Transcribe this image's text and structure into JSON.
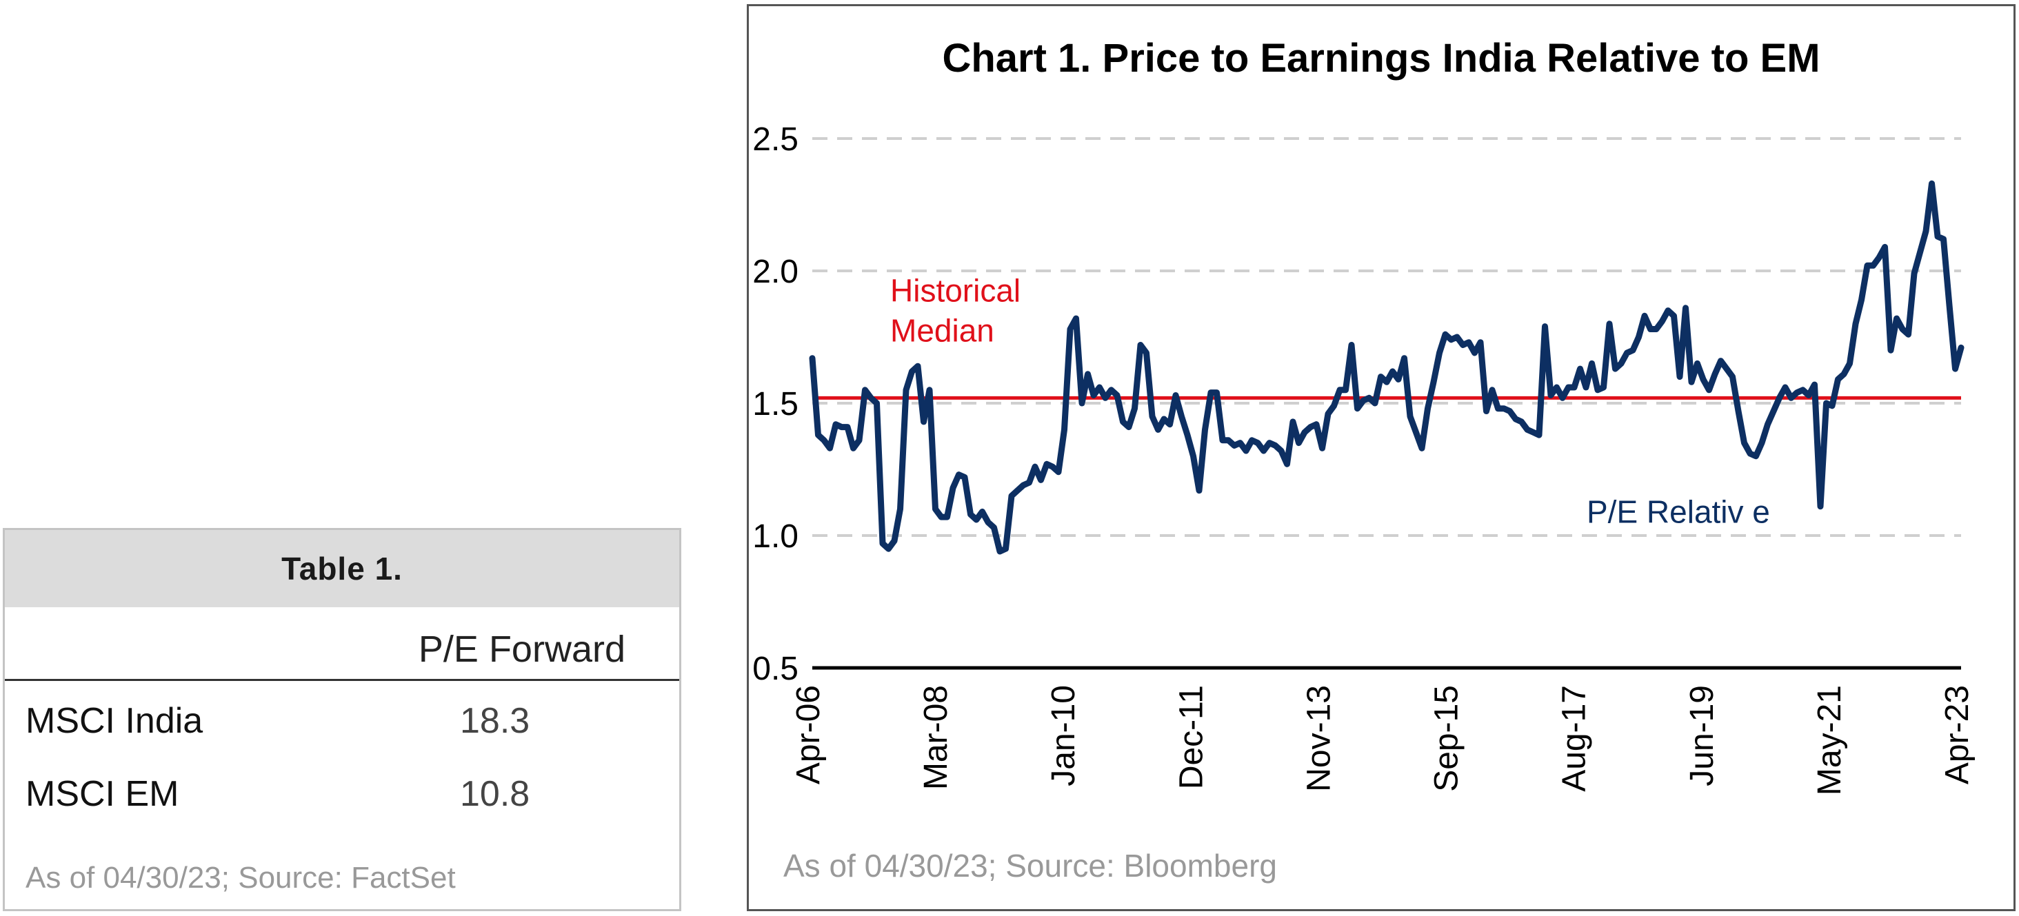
{
  "table": {
    "title": "Table 1.",
    "column_header": "P/E Forward",
    "rows": [
      {
        "label": "MSCI India",
        "value": "18.3"
      },
      {
        "label": "MSCI EM",
        "value": "10.8"
      }
    ],
    "note": "As of 04/30/23;  Source: FactSet"
  },
  "chart_data": {
    "type": "line",
    "title": "Chart 1. Price to Earnings India Relative to EM",
    "xlabel": "",
    "ylabel": "",
    "ylim": [
      0.5,
      2.5
    ],
    "yticks": [
      "0.5",
      "1.0",
      "1.5",
      "2.0",
      "2.5"
    ],
    "xtick_labels": [
      "Apr-06",
      "Mar-08",
      "Jan-10",
      "Dec-11",
      "Nov-13",
      "Sep-15",
      "Aug-17",
      "Jun-19",
      "May-21",
      "Apr-23"
    ],
    "grid": "horizontal-dashed",
    "series": [
      {
        "name": "P/E Relative",
        "color": "#0d2f62",
        "x_range": [
          "Apr-06",
          "Apr-23"
        ],
        "values": [
          1.67,
          1.38,
          1.36,
          1.33,
          1.42,
          1.41,
          1.41,
          1.33,
          1.36,
          1.55,
          1.52,
          1.5,
          0.97,
          0.95,
          0.98,
          1.1,
          1.55,
          1.62,
          1.64,
          1.43,
          1.55,
          1.1,
          1.07,
          1.07,
          1.18,
          1.23,
          1.22,
          1.08,
          1.06,
          1.09,
          1.05,
          1.03,
          0.94,
          0.95,
          1.15,
          1.17,
          1.19,
          1.2,
          1.26,
          1.21,
          1.27,
          1.26,
          1.24,
          1.4,
          1.78,
          1.82,
          1.5,
          1.61,
          1.53,
          1.56,
          1.52,
          1.55,
          1.53,
          1.43,
          1.41,
          1.48,
          1.72,
          1.69,
          1.45,
          1.4,
          1.44,
          1.42,
          1.53,
          1.45,
          1.38,
          1.3,
          1.17,
          1.4,
          1.54,
          1.54,
          1.36,
          1.36,
          1.34,
          1.35,
          1.32,
          1.36,
          1.35,
          1.32,
          1.35,
          1.34,
          1.32,
          1.27,
          1.43,
          1.35,
          1.39,
          1.41,
          1.42,
          1.33,
          1.46,
          1.49,
          1.55,
          1.55,
          1.72,
          1.48,
          1.51,
          1.52,
          1.5,
          1.6,
          1.58,
          1.62,
          1.59,
          1.67,
          1.45,
          1.39,
          1.33,
          1.48,
          1.58,
          1.69,
          1.76,
          1.74,
          1.75,
          1.72,
          1.73,
          1.69,
          1.73,
          1.47,
          1.55,
          1.48,
          1.48,
          1.47,
          1.44,
          1.43,
          1.4,
          1.39,
          1.38,
          1.79,
          1.53,
          1.56,
          1.52,
          1.56,
          1.56,
          1.63,
          1.56,
          1.65,
          1.55,
          1.56,
          1.8,
          1.63,
          1.65,
          1.69,
          1.7,
          1.75,
          1.83,
          1.78,
          1.78,
          1.81,
          1.85,
          1.83,
          1.6,
          1.86,
          1.58,
          1.65,
          1.59,
          1.55,
          1.61,
          1.66,
          1.63,
          1.6,
          1.47,
          1.35,
          1.31,
          1.3,
          1.35,
          1.42,
          1.47,
          1.52,
          1.56,
          1.52,
          1.54,
          1.55,
          1.53,
          1.57,
          1.11,
          1.5,
          1.49,
          1.59,
          1.61,
          1.65,
          1.8,
          1.89,
          2.02,
          2.02,
          2.05,
          2.09,
          1.7,
          1.82,
          1.78,
          1.76,
          1.99,
          2.07,
          2.15,
          2.33,
          2.13,
          2.12,
          1.87,
          1.63,
          1.71
        ]
      }
    ],
    "reference_lines": [
      {
        "name": "Historical Median",
        "label_lines": [
          "Historical",
          "Median"
        ],
        "value": 1.52,
        "color": "#e0101a"
      }
    ],
    "series_label": "P/E Relativ e",
    "note": "As of 04/30/23; Source:  Bloomberg",
    "colors": {
      "axis": "#000000",
      "grid": "#cfcfcf",
      "frame": "#555555"
    }
  }
}
